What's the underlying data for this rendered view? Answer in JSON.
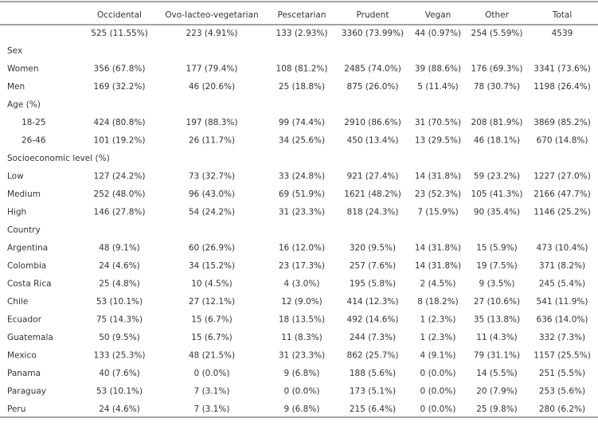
{
  "table": {
    "columns": [
      "Occidental",
      "Ovo-lacteo-vegetarian",
      "Pescetarian",
      "Prudent",
      "Vegan",
      "Other",
      "Total"
    ],
    "totals": [
      "525 (11.55%)",
      "223 (4.91%)",
      "133 (2.93%)",
      "3360 (73.99%)",
      "44 (0.97%)",
      "254 (5.59%)",
      "4539"
    ],
    "rows": [
      {
        "label": "Sex"
      },
      {
        "label": "Women",
        "cells": [
          "356 (67.8%)",
          "177 (79.4%)",
          "108 (81.2%)",
          "2485 (74.0%)",
          "39 (88.6%)",
          "176 (69.3%)",
          "3341 (73.6%)"
        ]
      },
      {
        "label": "Men",
        "cells": [
          "169 (32.2%)",
          "46 (20.6%)",
          "25 (18.8%)",
          "875 (26.0%)",
          "5 (11.4%)",
          "78 (30.7%)",
          "1198 (26.4%)"
        ]
      },
      {
        "label": "Age (%)"
      },
      {
        "label": "18-25",
        "indent": true,
        "cells": [
          "424 (80.8%)",
          "197 (88.3%)",
          "99 (74.4%)",
          "2910 (86.6%)",
          "31 (70.5%)",
          "208 (81.9%)",
          "3869 (85.2%)"
        ]
      },
      {
        "label": "26-46",
        "indent": true,
        "cells": [
          "101 (19.2%)",
          "26 (11.7%)",
          "34 (25.6%)",
          "450 (13.4%)",
          "13 (29.5%)",
          "46 (18.1%)",
          "670 (14.8%)"
        ]
      },
      {
        "label": "Socioeconomic level (%)"
      },
      {
        "label": "Low",
        "cells": [
          "127 (24.2%)",
          "73 (32.7%)",
          "33 (24.8%)",
          "921 (27.4%)",
          "14 (31.8%)",
          "59 (23.2%)",
          "1227 (27.0%)"
        ]
      },
      {
        "label": "Medium",
        "cells": [
          "252 (48.0%)",
          "96 (43.0%)",
          "69 (51.9%)",
          "1621 (48.2%)",
          "23 (52.3%)",
          "105 (41.3%)",
          "2166 (47.7%)"
        ]
      },
      {
        "label": "High",
        "cells": [
          "146 (27.8%)",
          "54 (24.2%)",
          "31 (23.3%)",
          "818 (24.3%)",
          "7 (15.9%)",
          "90 (35.4%)",
          "1146 (25.2%)"
        ]
      },
      {
        "label": "Country"
      },
      {
        "label": "Argentina",
        "cells": [
          "48 (9.1%)",
          "60 (26.9%)",
          "16 (12.0%)",
          "320 (9.5%)",
          "14 (31.8%)",
          "15 (5.9%)",
          "473 (10.4%)"
        ]
      },
      {
        "label": "Colombia",
        "cells": [
          "24 (4.6%)",
          "34 (15.2%)",
          "23 (17.3%)",
          "257 (7.6%)",
          "14 (31.8%)",
          "19 (7.5%)",
          "371 (8.2%)"
        ]
      },
      {
        "label": "Costa Rica",
        "cells": [
          "25 (4.8%)",
          "10 (4.5%)",
          "4 (3.0%)",
          "195 (5.8%)",
          "2 (4.5%)",
          "9 (3.5%)",
          "245 (5.4%)"
        ]
      },
      {
        "label": "Chile",
        "cells": [
          "53 (10.1%)",
          "27 (12.1%)",
          "12 (9.0%)",
          "414 (12.3%)",
          "8 (18.2%)",
          "27 (10.6%)",
          "541 (11.9%)"
        ]
      },
      {
        "label": "Ecuador",
        "cells": [
          "75 (14.3%)",
          "15 (6.7%)",
          "18 (13.5%)",
          "492 (14.6%)",
          "1 (2.3%)",
          "35 (13.8%)",
          "636 (14.0%)"
        ]
      },
      {
        "label": "Guatemala",
        "cells": [
          "50 (9.5%)",
          "15 (6.7%)",
          "11 (8.3%)",
          "244 (7.3%)",
          "1 (2.3%)",
          "11 (4.3%)",
          "332 (7.3%)"
        ]
      },
      {
        "label": "Mexico",
        "cells": [
          "133 (25.3%)",
          "48 (21.5%)",
          "31 (23.3%)",
          "862 (25.7%)",
          "4 (9.1%)",
          "79 (31.1%)",
          "1157 (25.5%)"
        ]
      },
      {
        "label": "Panama",
        "cells": [
          "40 (7.6%)",
          "0 (0.0%)",
          "9 (6.8%)",
          "188 (5.6%)",
          "0 (0.0%)",
          "14 (5.5%)",
          "251 (5.5%)"
        ]
      },
      {
        "label": "Paraguay",
        "cells": [
          "53 (10.1%)",
          "7 (3.1%)",
          "0 (0.0%)",
          "173 (5.1%)",
          "0 (0.0%)",
          "20 (7.9%)",
          "253 (5.6%)"
        ]
      },
      {
        "label": "Peru",
        "cells": [
          "24 (4.6%)",
          "7 (3.1%)",
          "9 (6.8%)",
          "215 (6.4%)",
          "0 (0.0%)",
          "25 (9.8%)",
          "280 (6.2%)"
        ]
      }
    ]
  }
}
